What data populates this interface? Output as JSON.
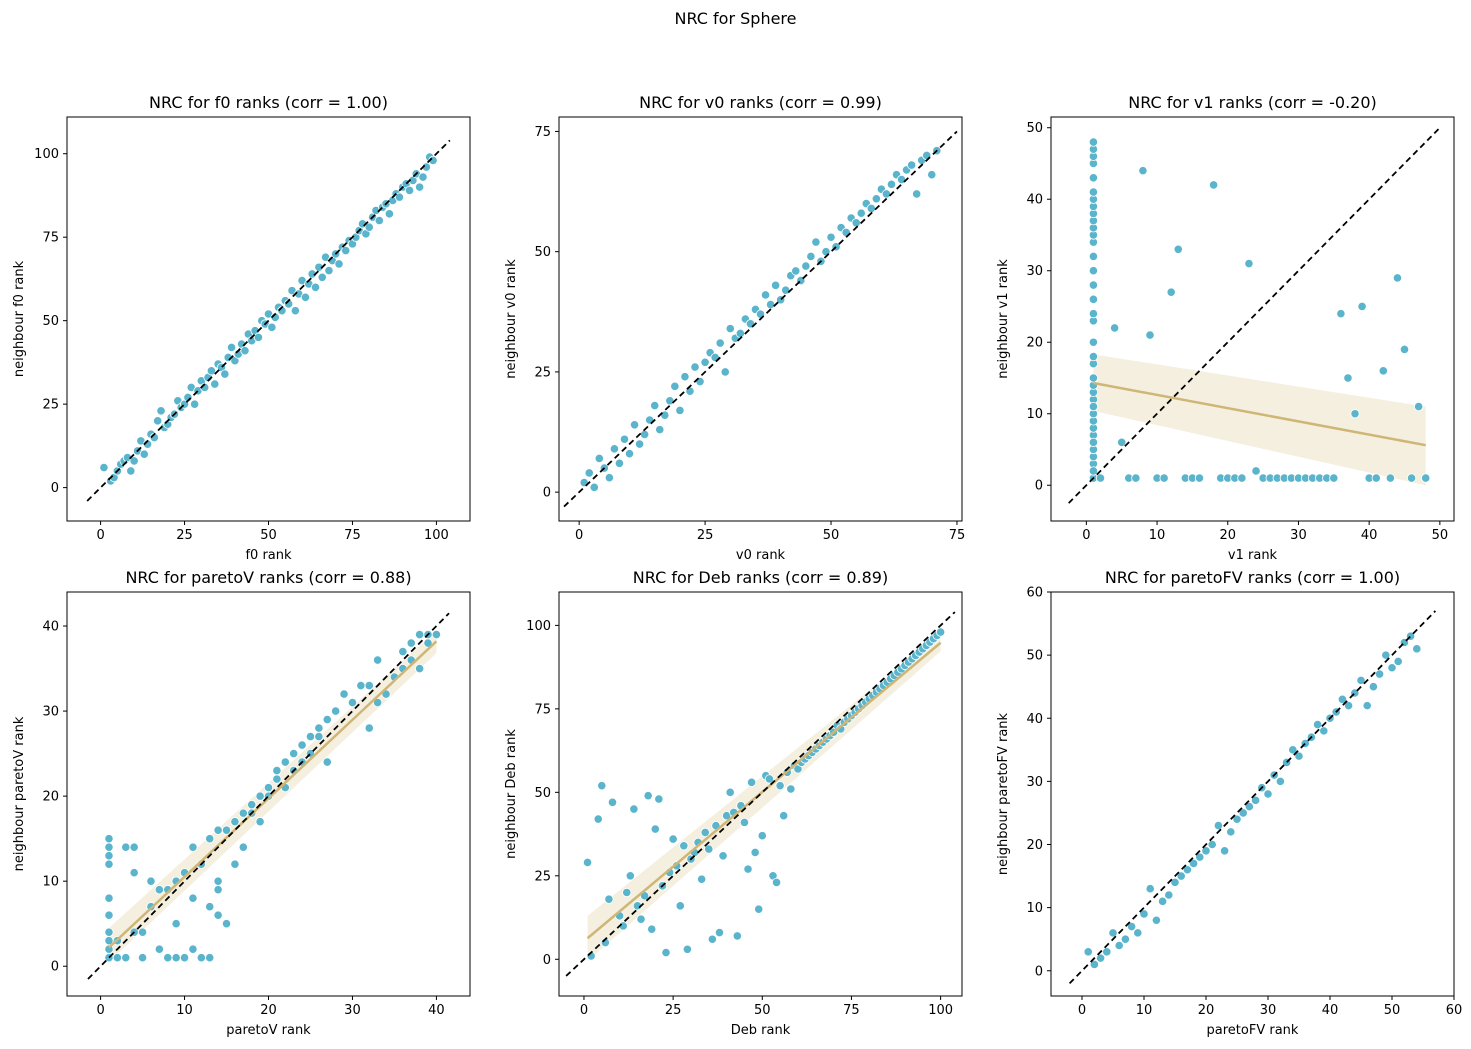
{
  "figure_title": "NRC for Sphere",
  "colors": {
    "points": "#5ab4cc",
    "regression": "#cfb676",
    "band": "#f2ecd9",
    "identity": "#000000"
  },
  "chart_data": [
    {
      "type": "scatter",
      "title": "NRC for f0 ranks (corr = 1.00)",
      "xlabel": "f0 rank",
      "ylabel": "neighbour f0 rank",
      "xlim": [
        -10,
        110
      ],
      "ylim": [
        -10,
        111
      ],
      "xticks": [
        0,
        25,
        50,
        75,
        100
      ],
      "yticks": [
        0,
        25,
        50,
        75,
        100
      ],
      "identity_line": [
        -4,
        104
      ],
      "regression": null,
      "x": [
        1,
        3,
        4,
        5,
        6,
        7,
        8,
        9,
        10,
        11,
        12,
        13,
        14,
        15,
        16,
        17,
        18,
        19,
        20,
        21,
        22,
        23,
        24,
        25,
        26,
        27,
        28,
        29,
        30,
        31,
        32,
        33,
        34,
        35,
        36,
        37,
        38,
        39,
        40,
        41,
        42,
        43,
        44,
        45,
        46,
        47,
        48,
        49,
        50,
        51,
        52,
        53,
        54,
        55,
        56,
        57,
        58,
        59,
        60,
        61,
        62,
        63,
        64,
        65,
        66,
        67,
        68,
        69,
        70,
        71,
        72,
        73,
        74,
        75,
        76,
        77,
        78,
        79,
        80,
        81,
        82,
        83,
        84,
        85,
        86,
        87,
        88,
        89,
        90,
        91,
        92,
        93,
        94,
        95,
        96,
        97,
        98,
        99
      ],
      "y": [
        6,
        2,
        3,
        5,
        7,
        8,
        9,
        5,
        8,
        11,
        14,
        10,
        13,
        16,
        15,
        20,
        23,
        18,
        19,
        21,
        22,
        26,
        24,
        25,
        27,
        30,
        25,
        29,
        32,
        30,
        33,
        35,
        31,
        37,
        36,
        34,
        39,
        42,
        38,
        40,
        43,
        41,
        46,
        44,
        47,
        45,
        50,
        49,
        52,
        48,
        51,
        54,
        53,
        56,
        55,
        59,
        53,
        58,
        62,
        57,
        61,
        64,
        60,
        66,
        63,
        69,
        65,
        68,
        70,
        67,
        72,
        71,
        74,
        73,
        75,
        77,
        79,
        76,
        78,
        81,
        83,
        80,
        84,
        85,
        82,
        86,
        88,
        87,
        90,
        91,
        89,
        92,
        94,
        90,
        93,
        96,
        99,
        98
      ]
    },
    {
      "type": "scatter",
      "title": "NRC for v0 ranks (corr = 0.99)",
      "xlabel": "v0 rank",
      "ylabel": "neighbour v0 rank",
      "xlim": [
        -4,
        76
      ],
      "ylim": [
        -6,
        78
      ],
      "xticks": [
        0,
        25,
        50,
        75
      ],
      "yticks": [
        0,
        25,
        50,
        75
      ],
      "identity_line": [
        -3,
        75
      ],
      "regression": null,
      "x": [
        1,
        2,
        3,
        4,
        5,
        6,
        7,
        8,
        9,
        10,
        11,
        12,
        13,
        14,
        15,
        16,
        17,
        18,
        19,
        20,
        21,
        22,
        23,
        24,
        25,
        26,
        27,
        28,
        29,
        30,
        31,
        32,
        33,
        34,
        35,
        36,
        37,
        38,
        39,
        40,
        41,
        42,
        43,
        44,
        45,
        46,
        47,
        48,
        49,
        50,
        51,
        52,
        53,
        54,
        55,
        56,
        57,
        58,
        59,
        60,
        61,
        62,
        63,
        64,
        65,
        66,
        67,
        68,
        69,
        70,
        71
      ],
      "y": [
        2,
        4,
        1,
        7,
        5,
        3,
        9,
        6,
        11,
        8,
        14,
        10,
        12,
        15,
        18,
        13,
        16,
        19,
        22,
        17,
        24,
        21,
        26,
        23,
        27,
        29,
        28,
        31,
        25,
        34,
        32,
        33,
        36,
        35,
        38,
        37,
        41,
        39,
        43,
        40,
        42,
        45,
        46,
        44,
        47,
        49,
        52,
        48,
        50,
        53,
        51,
        55,
        54,
        57,
        56,
        58,
        60,
        59,
        61,
        63,
        62,
        64,
        66,
        65,
        67,
        68,
        62,
        69,
        70,
        66,
        71
      ]
    },
    {
      "type": "scatter",
      "title": "NRC for v1 ranks (corr = -0.20)",
      "xlabel": "v1 rank",
      "ylabel": "neighbour v1 rank",
      "xlim": [
        -5,
        52
      ],
      "ylim": [
        -5,
        51.5
      ],
      "xticks": [
        0,
        10,
        20,
        30,
        40,
        50
      ],
      "yticks": [
        0,
        10,
        20,
        30,
        40,
        50
      ],
      "identity_line": [
        -2.5,
        50
      ],
      "regression": {
        "x": [
          1,
          48
        ],
        "y": [
          14.3,
          5.6
        ],
        "band_upper": [
          18.3,
          11
        ],
        "band_lower": [
          10.4,
          0
        ]
      },
      "x": [
        1,
        1,
        1,
        1,
        1,
        1,
        1,
        1,
        1,
        1,
        1,
        1,
        1,
        1,
        1,
        1,
        1,
        1,
        1,
        1,
        1,
        1,
        1,
        1,
        1,
        1,
        1,
        1,
        1,
        1,
        1,
        1,
        1,
        1,
        1,
        1,
        1,
        2,
        4,
        5,
        6,
        7,
        8,
        9,
        10,
        11,
        12,
        13,
        14,
        15,
        16,
        18,
        19,
        20,
        21,
        22,
        23,
        24,
        25,
        26,
        27,
        28,
        29,
        30,
        31,
        32,
        33,
        34,
        35,
        36,
        37,
        38,
        39,
        40,
        41,
        42,
        43,
        44,
        45,
        46,
        47,
        48
      ],
      "y": [
        1,
        3,
        4,
        5,
        7,
        8,
        9,
        10,
        12,
        13,
        14,
        15,
        17,
        18,
        20,
        23,
        24,
        26,
        28,
        30,
        32,
        34,
        35,
        36,
        37,
        38,
        39,
        40,
        41,
        43,
        45,
        46,
        47,
        48,
        2,
        6,
        11,
        1,
        22,
        6,
        1,
        1,
        44,
        21,
        1,
        1,
        27,
        33,
        1,
        1,
        1,
        42,
        1,
        1,
        1,
        1,
        31,
        2,
        1,
        1,
        1,
        1,
        1,
        1,
        1,
        1,
        1,
        1,
        1,
        24,
        15,
        10,
        25,
        1,
        1,
        16,
        1,
        29,
        19,
        1,
        11,
        1
      ],
      "x_extra_note": ""
    },
    {
      "type": "scatter",
      "title": "NRC for paretoV ranks (corr = 0.88)",
      "xlabel": "paretoV rank",
      "ylabel": "neighbour paretoV rank",
      "xlim": [
        -4,
        44
      ],
      "ylim": [
        -3.5,
        44
      ],
      "xticks": [
        0,
        10,
        20,
        30,
        40
      ],
      "yticks": [
        0,
        10,
        20,
        30,
        40
      ],
      "identity_line": [
        -1.5,
        41.5
      ],
      "regression": {
        "x": [
          1,
          40
        ],
        "y": [
          2.2,
          38.2
        ],
        "band_upper": [
          4.5,
          39.5
        ],
        "band_lower": [
          0.5,
          36.8
        ]
      },
      "x": [
        1,
        1,
        1,
        1,
        1,
        1,
        1,
        1,
        1,
        1,
        2,
        2,
        3,
        3,
        4,
        4,
        4,
        5,
        5,
        6,
        6,
        7,
        7,
        8,
        8,
        9,
        9,
        9,
        10,
        10,
        11,
        11,
        11,
        12,
        12,
        13,
        13,
        13,
        14,
        14,
        14,
        14,
        15,
        15,
        16,
        16,
        17,
        17,
        18,
        18,
        19,
        19,
        20,
        20,
        21,
        21,
        22,
        22,
        23,
        23,
        24,
        24,
        25,
        25,
        26,
        26,
        27,
        27,
        28,
        29,
        30,
        31,
        32,
        32,
        33,
        33,
        34,
        35,
        36,
        36,
        37,
        37,
        38,
        38,
        39,
        39,
        40
      ],
      "y": [
        1,
        3,
        4,
        6,
        8,
        12,
        13,
        14,
        15,
        2,
        3,
        1,
        14,
        1,
        14,
        11,
        4,
        4,
        1,
        10,
        7,
        9,
        2,
        1,
        9,
        10,
        5,
        1,
        1,
        11,
        14,
        8,
        2,
        12,
        1,
        7,
        15,
        1,
        16,
        6,
        10,
        9,
        16,
        5,
        17,
        12,
        18,
        14,
        19,
        18,
        17,
        20,
        20,
        21,
        23,
        22,
        24,
        21,
        25,
        23,
        26,
        24,
        27,
        25,
        28,
        27,
        29,
        24,
        30,
        32,
        31,
        33,
        33,
        28,
        36,
        31,
        32,
        34,
        37,
        35,
        38,
        36,
        39,
        35,
        39,
        38,
        39
      ]
    },
    {
      "type": "scatter",
      "title": "NRC for Deb ranks (corr = 0.89)",
      "xlabel": "Deb rank",
      "ylabel": "neighbour Deb rank",
      "xlim": [
        -7,
        106
      ],
      "ylim": [
        -11,
        110
      ],
      "xticks": [
        0,
        25,
        50,
        75,
        100
      ],
      "yticks": [
        0,
        25,
        50,
        75,
        100
      ],
      "identity_line": [
        -5,
        104
      ],
      "regression": {
        "x": [
          1,
          100
        ],
        "y": [
          6.3,
          94.8
        ],
        "band_upper": [
          13,
          97.5
        ],
        "band_lower": [
          -0.5,
          92.2
        ]
      },
      "x": [
        1,
        2,
        4,
        5,
        6,
        7,
        8,
        10,
        11,
        12,
        13,
        14,
        15,
        16,
        17,
        18,
        19,
        20,
        21,
        22,
        23,
        24,
        25,
        26,
        27,
        28,
        29,
        30,
        31,
        32,
        33,
        34,
        35,
        36,
        37,
        38,
        39,
        40,
        41,
        42,
        43,
        44,
        45,
        46,
        47,
        48,
        49,
        50,
        51,
        52,
        53,
        54,
        55,
        56,
        57,
        58,
        59,
        60,
        61,
        62,
        63,
        64,
        65,
        66,
        67,
        68,
        69,
        70,
        71,
        72,
        73,
        74,
        75,
        76,
        77,
        78,
        79,
        80,
        81,
        82,
        83,
        84,
        85,
        86,
        87,
        88,
        89,
        90,
        91,
        92,
        93,
        94,
        95,
        96,
        97,
        98,
        99,
        100
      ],
      "y": [
        29,
        1,
        42,
        52,
        5,
        18,
        47,
        13,
        10,
        20,
        25,
        45,
        16,
        12,
        19,
        49,
        9,
        39,
        48,
        22,
        2,
        26,
        36,
        28,
        16,
        34,
        3,
        30,
        32,
        35,
        24,
        38,
        33,
        6,
        40,
        8,
        31,
        43,
        50,
        44,
        7,
        46,
        41,
        27,
        53,
        32,
        15,
        37,
        55,
        54,
        25,
        23,
        52,
        43,
        56,
        51,
        58,
        57,
        59,
        60,
        61,
        62,
        63,
        64,
        65,
        66,
        67,
        68,
        70,
        69,
        71,
        72,
        73,
        74,
        75,
        76,
        77,
        78,
        79,
        80,
        81,
        82,
        83,
        84,
        85,
        86,
        87,
        88,
        89,
        90,
        91,
        92,
        93,
        94,
        95,
        96,
        97,
        98
      ]
    },
    {
      "type": "scatter",
      "title": "NRC for paretoFV ranks (corr = 1.00)",
      "xlabel": "paretoFV rank",
      "ylabel": "neighbour paretoFV rank",
      "xlim": [
        -5,
        60
      ],
      "ylim": [
        -4,
        60
      ],
      "xticks": [
        0,
        10,
        20,
        30,
        40,
        50,
        60
      ],
      "yticks": [
        0,
        10,
        20,
        30,
        40,
        50,
        60
      ],
      "identity_line": [
        -2,
        57
      ],
      "regression": null,
      "x": [
        1,
        2,
        3,
        4,
        5,
        6,
        7,
        8,
        9,
        10,
        11,
        12,
        13,
        14,
        15,
        16,
        17,
        18,
        19,
        20,
        21,
        22,
        23,
        24,
        25,
        26,
        27,
        28,
        29,
        30,
        31,
        32,
        33,
        34,
        35,
        36,
        37,
        38,
        39,
        40,
        41,
        42,
        43,
        44,
        45,
        46,
        47,
        48,
        49,
        50,
        51,
        52,
        53,
        54
      ],
      "y": [
        3,
        1,
        2,
        3,
        6,
        4,
        5,
        7,
        6,
        9,
        13,
        8,
        11,
        12,
        14,
        15,
        16,
        17,
        18,
        19,
        20,
        23,
        19,
        22,
        24,
        25,
        26,
        27,
        29,
        28,
        31,
        30,
        33,
        35,
        34,
        36,
        37,
        39,
        38,
        40,
        41,
        43,
        42,
        44,
        46,
        42,
        45,
        47,
        50,
        48,
        49,
        52,
        53,
        51
      ]
    }
  ]
}
